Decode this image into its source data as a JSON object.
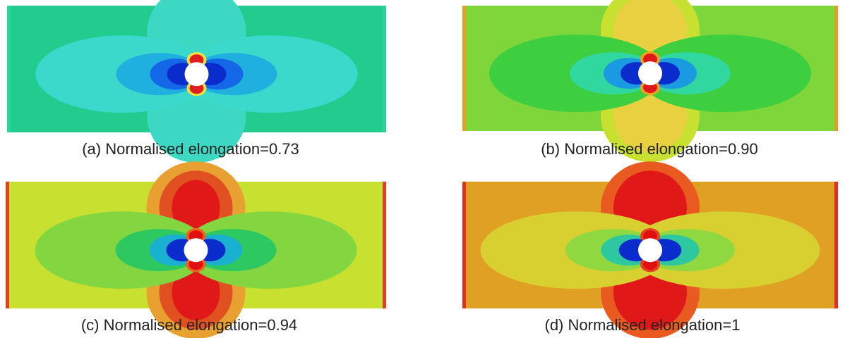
{
  "panels": [
    {
      "caption": "(a) Normalised elongation=0.73"
    },
    {
      "caption": "(b) Normalised elongation=0.90"
    },
    {
      "caption": "(c) Normalised elongation=0.94"
    },
    {
      "caption": "(d) Normalised elongation=1"
    }
  ]
}
